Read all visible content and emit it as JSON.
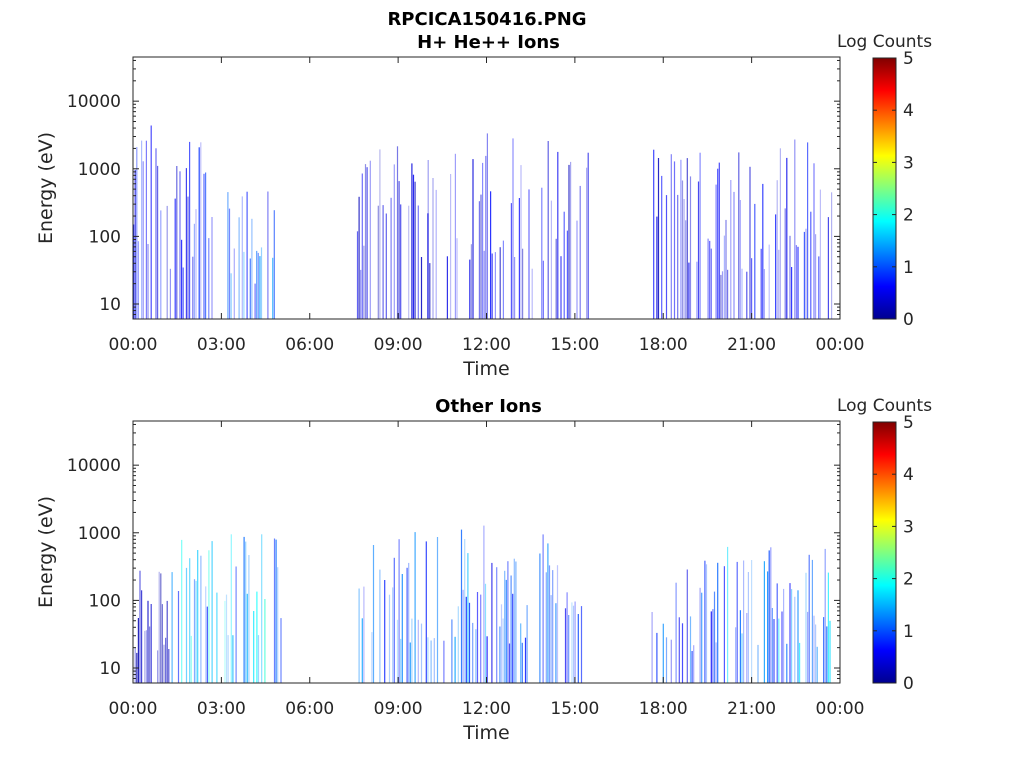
{
  "figure_title": "RPCICA150416.PNG",
  "colormap": [
    "#00008f",
    "#0000ff",
    "#0080ff",
    "#00ffff",
    "#80ff80",
    "#ffff00",
    "#ff8000",
    "#ff0000",
    "#800000"
  ],
  "chart_data": [
    {
      "type": "heatmap",
      "title": "H+ He++ Ions",
      "xlabel": "Time",
      "ylabel": "Energy (eV)",
      "x_tick_labels": [
        "00:00",
        "03:00",
        "06:00",
        "09:00",
        "12:00",
        "15:00",
        "18:00",
        "21:00",
        "00:00"
      ],
      "x_ticks_hours": [
        0,
        3,
        6,
        9,
        12,
        15,
        18,
        21,
        24
      ],
      "xlim_hours": [
        0,
        24
      ],
      "y_scale": "log",
      "ylim": [
        6,
        45000
      ],
      "y_tick_values": [
        10,
        100,
        1000,
        10000
      ],
      "y_tick_labels": [
        "10",
        "100",
        "1000",
        "10000"
      ],
      "colorbar": {
        "label": "Log Counts",
        "range": [
          0,
          5
        ],
        "ticks": [
          "0",
          "1",
          "2",
          "3",
          "4",
          "5"
        ]
      },
      "activity_intervals": [
        {
          "start": 0.0,
          "end": 2.8,
          "emin": 6,
          "emax": 5000,
          "level": 0.8
        },
        {
          "start": 3.2,
          "end": 4.8,
          "emin": 6,
          "emax": 500,
          "level": 1.2
        },
        {
          "start": 7.6,
          "end": 10.0,
          "emin": 6,
          "emax": 3000,
          "level": 0.5
        },
        {
          "start": 10.0,
          "end": 15.5,
          "emin": 6,
          "emax": 4000,
          "level": 0.6
        },
        {
          "start": 17.6,
          "end": 20.0,
          "emin": 6,
          "emax": 2000,
          "level": 0.6
        },
        {
          "start": 20.0,
          "end": 23.7,
          "emin": 6,
          "emax": 3000,
          "level": 0.7
        }
      ]
    },
    {
      "type": "heatmap",
      "title": "Other Ions",
      "xlabel": "Time",
      "ylabel": "Energy (eV)",
      "x_tick_labels": [
        "00:00",
        "03:00",
        "06:00",
        "09:00",
        "12:00",
        "15:00",
        "18:00",
        "21:00",
        "00:00"
      ],
      "x_ticks_hours": [
        0,
        3,
        6,
        9,
        12,
        15,
        18,
        21,
        24
      ],
      "xlim_hours": [
        0,
        24
      ],
      "y_scale": "log",
      "ylim": [
        6,
        45000
      ],
      "y_tick_values": [
        10,
        100,
        1000,
        10000
      ],
      "y_tick_labels": [
        "10",
        "100",
        "1000",
        "10000"
      ],
      "colorbar": {
        "label": "Log Counts",
        "range": [
          0,
          5
        ],
        "ticks": [
          "0",
          "1",
          "2",
          "3",
          "4",
          "5"
        ]
      },
      "activity_intervals": [
        {
          "start": 0.0,
          "end": 1.2,
          "emin": 6,
          "emax": 300,
          "level": 0.3
        },
        {
          "start": 1.2,
          "end": 5.1,
          "emin": 6,
          "emax": 1100,
          "level": 1.8
        },
        {
          "start": 7.6,
          "end": 9.5,
          "emin": 6,
          "emax": 900,
          "level": 1.2
        },
        {
          "start": 9.5,
          "end": 12.0,
          "emin": 6,
          "emax": 1500,
          "level": 1.3
        },
        {
          "start": 12.0,
          "end": 15.3,
          "emin": 6,
          "emax": 1000,
          "level": 1.1
        },
        {
          "start": 17.6,
          "end": 20.0,
          "emin": 6,
          "emax": 400,
          "level": 1.1
        },
        {
          "start": 20.0,
          "end": 23.7,
          "emin": 6,
          "emax": 700,
          "level": 1.5
        }
      ]
    }
  ]
}
